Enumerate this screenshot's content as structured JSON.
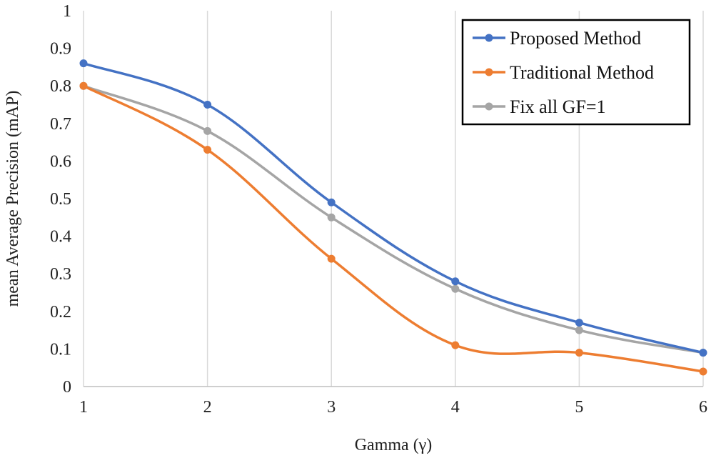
{
  "chart_data": {
    "type": "line",
    "title": "",
    "xlabel": "Gamma (γ)",
    "ylabel": "mean Average Precision (mAP)",
    "x": [
      1,
      2,
      3,
      4,
      5,
      6
    ],
    "xlim": [
      1,
      6
    ],
    "ylim": [
      0,
      1
    ],
    "x_ticks": [
      "1",
      "2",
      "3",
      "4",
      "5",
      "6"
    ],
    "y_ticks": [
      "0",
      "0.1",
      "0.2",
      "0.3",
      "0.4",
      "0.5",
      "0.6",
      "0.7",
      "0.8",
      "0.9",
      "1"
    ],
    "grid": "vertical",
    "legend_position": "top-right",
    "series": [
      {
        "name": "Proposed Method",
        "color": "#4472C4",
        "values": [
          0.86,
          0.75,
          0.49,
          0.28,
          0.17,
          0.09
        ]
      },
      {
        "name": "Traditional Method",
        "color": "#ED7D31",
        "values": [
          0.8,
          0.63,
          0.34,
          0.11,
          0.09,
          0.04
        ]
      },
      {
        "name": "Fix all GF=1",
        "color": "#A5A5A5",
        "values": [
          0.8,
          0.68,
          0.45,
          0.26,
          0.15,
          0.09
        ]
      }
    ]
  }
}
